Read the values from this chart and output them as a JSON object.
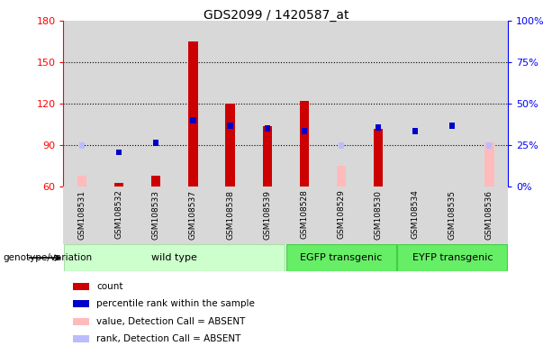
{
  "title": "GDS2099 / 1420587_at",
  "samples": [
    "GSM108531",
    "GSM108532",
    "GSM108533",
    "GSM108537",
    "GSM108538",
    "GSM108539",
    "GSM108528",
    "GSM108529",
    "GSM108530",
    "GSM108534",
    "GSM108535",
    "GSM108536"
  ],
  "groups": [
    {
      "label": "wild type",
      "color": "#ccffcc",
      "border": "#aaddaa",
      "start": 0,
      "end": 5
    },
    {
      "label": "EGFP transgenic",
      "color": "#66ee66",
      "border": "#44cc44",
      "start": 6,
      "end": 8
    },
    {
      "label": "EYFP transgenic",
      "color": "#66ee66",
      "border": "#44cc44",
      "start": 9,
      "end": 11
    }
  ],
  "count_values": [
    null,
    63,
    68,
    165,
    120,
    104,
    122,
    null,
    102,
    null,
    null,
    null
  ],
  "percentile_values": [
    null,
    85,
    92,
    108,
    104,
    102,
    100,
    null,
    103,
    100,
    104,
    null
  ],
  "absent_value_values": [
    68,
    null,
    null,
    null,
    null,
    null,
    null,
    75,
    null,
    null,
    null,
    92
  ],
  "absent_rank_values": [
    90,
    null,
    null,
    null,
    null,
    null,
    null,
    90,
    null,
    null,
    null,
    90
  ],
  "ylim_left": [
    60,
    180
  ],
  "ylim_right": [
    0,
    100
  ],
  "yticks_left": [
    60,
    90,
    120,
    150,
    180
  ],
  "yticks_right": [
    0,
    25,
    50,
    75,
    100
  ],
  "ytick_labels_right": [
    "0%",
    "25%",
    "50%",
    "75%",
    "100%"
  ],
  "count_color": "#cc0000",
  "percentile_color": "#0000cc",
  "absent_value_color": "#ffbbbb",
  "absent_rank_color": "#bbbbff",
  "col_bg_color": "#d8d8d8",
  "plot_bg": "white",
  "genotype_label": "genotype/variation",
  "legend_items": [
    {
      "color": "#cc0000",
      "label": "count"
    },
    {
      "color": "#0000cc",
      "label": "percentile rank within the sample"
    },
    {
      "color": "#ffbbbb",
      "label": "value, Detection Call = ABSENT"
    },
    {
      "color": "#bbbbff",
      "label": "rank, Detection Call = ABSENT"
    }
  ]
}
